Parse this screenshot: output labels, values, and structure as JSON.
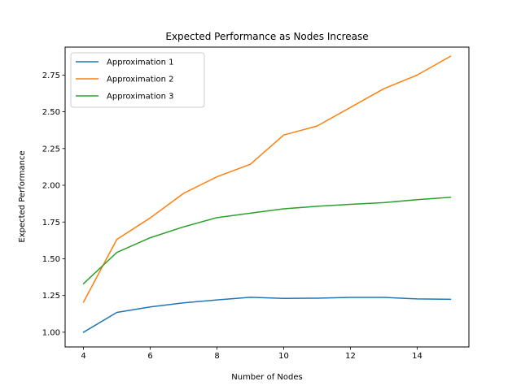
{
  "chart_data": {
    "type": "line",
    "title": "Expected Performance as Nodes Increase",
    "xlabel": "Number of Nodes",
    "ylabel": "Expected Performance",
    "xlim": [
      3.45,
      15.55
    ],
    "ylim": [
      0.9,
      2.94
    ],
    "xticks": [
      4,
      6,
      8,
      10,
      12,
      14
    ],
    "yticks": [
      1.0,
      1.25,
      1.5,
      1.75,
      2.0,
      2.25,
      2.5,
      2.75
    ],
    "ytick_labels": [
      "1.00",
      "1.25",
      "1.50",
      "1.75",
      "2.00",
      "2.25",
      "2.50",
      "2.75"
    ],
    "x": [
      4,
      5,
      6,
      7,
      8,
      9,
      10,
      11,
      12,
      13,
      14,
      15
    ],
    "grid": false,
    "legend_position": "upper-left",
    "series": [
      {
        "name": "Approximation 1",
        "color": "#1f77b4",
        "values": [
          1.0,
          1.135,
          1.172,
          1.2,
          1.22,
          1.238,
          1.23,
          1.232,
          1.237,
          1.237,
          1.227,
          1.224
        ]
      },
      {
        "name": "Approximation 2",
        "color": "#ff7f0e",
        "values": [
          1.205,
          1.632,
          1.778,
          1.945,
          2.058,
          2.143,
          2.342,
          2.403,
          2.53,
          2.657,
          2.75,
          2.878
        ]
      },
      {
        "name": "Approximation 3",
        "color": "#2ca02c",
        "values": [
          1.33,
          1.543,
          1.643,
          1.717,
          1.78,
          1.81,
          1.84,
          1.857,
          1.87,
          1.882,
          1.902,
          1.918
        ]
      }
    ]
  }
}
